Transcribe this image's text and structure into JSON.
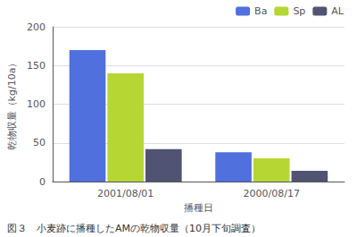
{
  "chart_data": {
    "type": "bar",
    "categories": [
      "2001/08/01",
      "2000/08/17"
    ],
    "series": [
      {
        "name": "Ba",
        "values": [
          170,
          38
        ]
      },
      {
        "name": "Sp",
        "values": [
          140,
          30
        ]
      },
      {
        "name": "AL",
        "values": [
          42,
          14
        ]
      }
    ],
    "xlabel": "播種日",
    "ylabel": "乾物収量（kg/10a）",
    "caption": "図３　小麦跡に播種したAMの乾物収量（10月下旬調査）",
    "ylim": [
      0,
      200
    ],
    "yticks": [
      0,
      50,
      100,
      150,
      200
    ],
    "grid": true,
    "legend": "upper right"
  }
}
